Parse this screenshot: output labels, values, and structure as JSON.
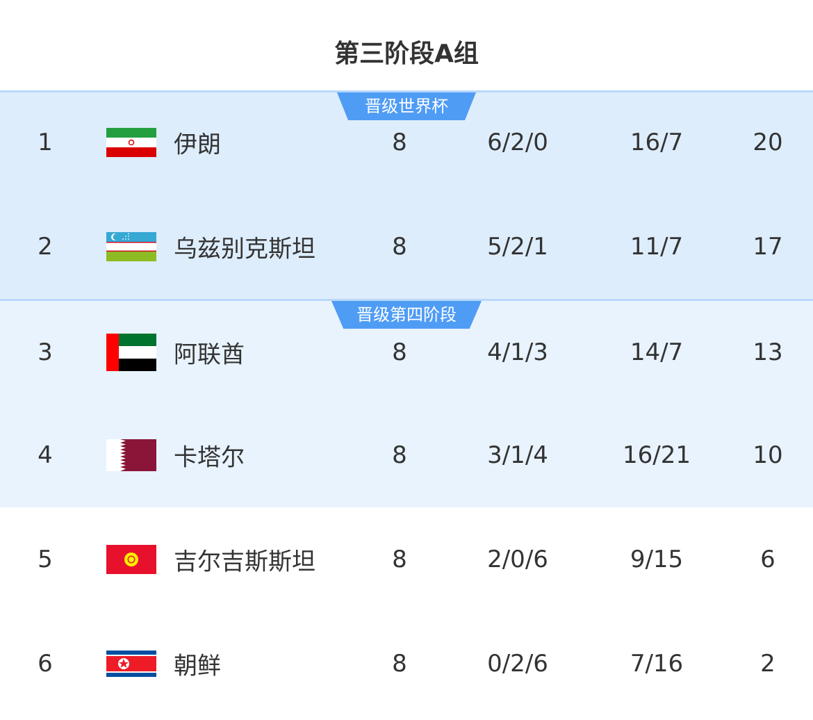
{
  "title": "第三阶段A组",
  "zones": [
    {
      "label": "晋级世界杯",
      "color": "#4f9cf5"
    },
    {
      "label": "晋级第四阶段",
      "color": "#4f9cf5"
    }
  ],
  "rows": [
    {
      "rank": "1",
      "flag": "iran-flag",
      "team": "伊朗",
      "played": "8",
      "wdl": "6/2/0",
      "goals": "16/7",
      "points": "20"
    },
    {
      "rank": "2",
      "flag": "uzbekistan-flag",
      "team": "乌兹别克斯坦",
      "played": "8",
      "wdl": "5/2/1",
      "goals": "11/7",
      "points": "17"
    },
    {
      "rank": "3",
      "flag": "uae-flag",
      "team": "阿联酋",
      "played": "8",
      "wdl": "4/1/3",
      "goals": "14/7",
      "points": "13"
    },
    {
      "rank": "4",
      "flag": "qatar-flag",
      "team": "卡塔尔",
      "played": "8",
      "wdl": "3/1/4",
      "goals": "16/21",
      "points": "10"
    },
    {
      "rank": "5",
      "flag": "kyrgyzstan-flag",
      "team": "吉尔吉斯斯坦",
      "played": "8",
      "wdl": "2/0/6",
      "goals": "9/15",
      "points": "6"
    },
    {
      "rank": "6",
      "flag": "north-korea-flag",
      "team": "朝鲜",
      "played": "8",
      "wdl": "0/2/6",
      "goals": "7/16",
      "points": "2"
    }
  ]
}
